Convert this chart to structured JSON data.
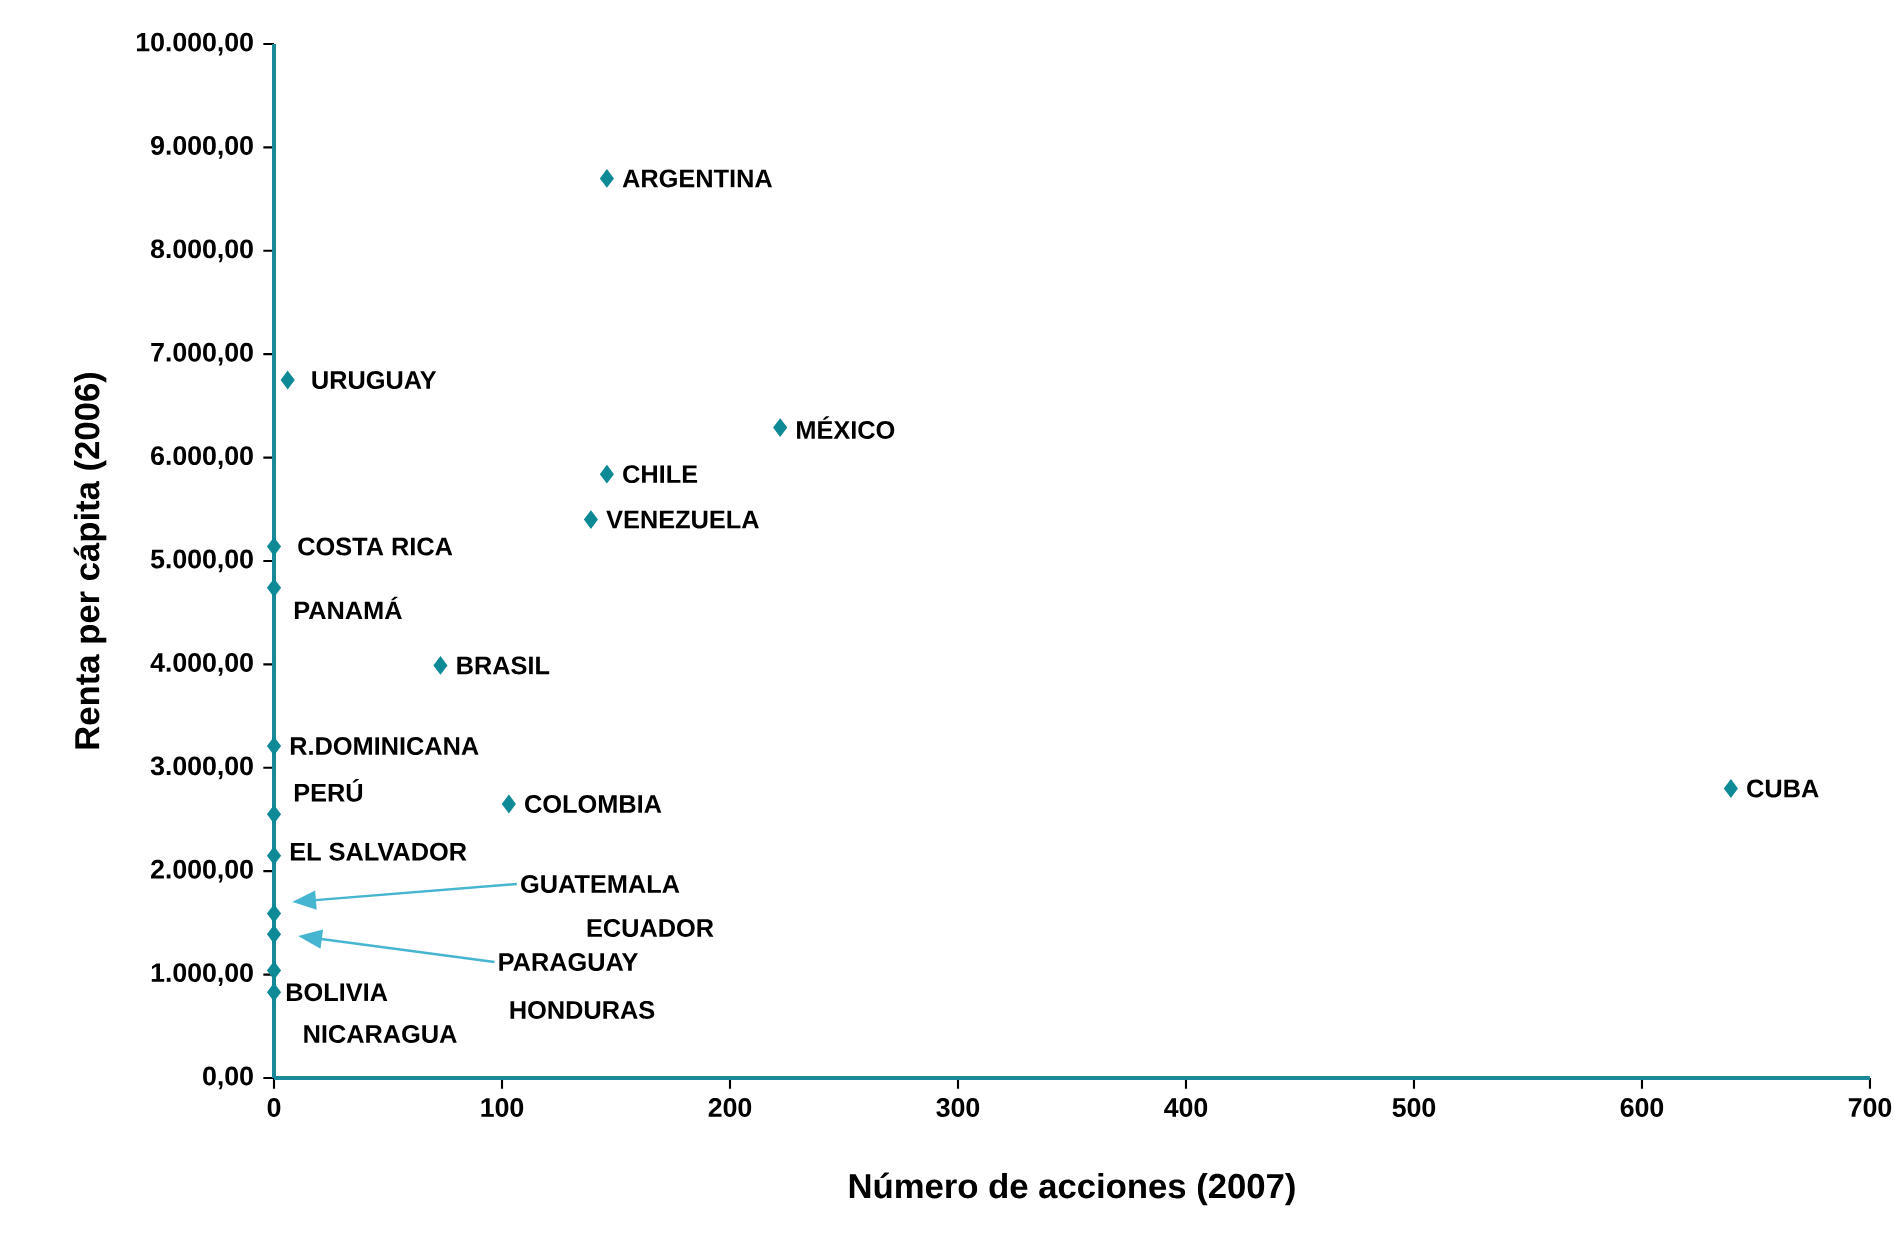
{
  "chart_data": {
    "type": "scatter",
    "xlabel": "Número de acciones (2007)",
    "ylabel": "Renta per cápita (2006)",
    "x": [
      146,
      6,
      222,
      146,
      139,
      0,
      0,
      73,
      0,
      0,
      103,
      0,
      0,
      0,
      0,
      0,
      639
    ],
    "values": [
      8700,
      6750,
      6290,
      5840,
      5400,
      5140,
      4740,
      3990,
      3210,
      2550,
      2650,
      2150,
      1590,
      1390,
      1040,
      830,
      2800
    ],
    "color": "#0e8a96",
    "marker": "diamond",
    "grid": false,
    "xlim": [
      0,
      700
    ],
    "xticks": [
      0,
      100,
      200,
      300,
      400,
      500,
      600,
      700
    ],
    "ylim": [
      0,
      10000
    ],
    "yticks": [
      {
        "value": 0,
        "label": "0,00"
      },
      {
        "value": 1000,
        "label": "1.000,00"
      },
      {
        "value": 2000,
        "label": "2.000,00"
      },
      {
        "value": 3000,
        "label": "3.000,00"
      },
      {
        "value": 4000,
        "label": "4.000,00"
      },
      {
        "value": 5000,
        "label": "5.000,00"
      },
      {
        "value": 6000,
        "label": "6.000,00"
      },
      {
        "value": 7000,
        "label": "7.000,00"
      },
      {
        "value": 8000,
        "label": "8.000,00"
      },
      {
        "value": 9000,
        "label": "9.000,00"
      },
      {
        "value": 10000,
        "label": "10.000,00"
      }
    ],
    "annotations": [
      {
        "text": "ARGENTINA",
        "x": 146,
        "y": 8700
      },
      {
        "text": "URUGUAY",
        "x": 6,
        "y": 6750
      },
      {
        "text": "MÉXICO",
        "x": 222,
        "y": 6290
      },
      {
        "text": "CHILE",
        "x": 146,
        "y": 5840
      },
      {
        "text": "VENEZUELA",
        "x": 139,
        "y": 5400
      },
      {
        "text": "COSTA RICA",
        "x": 0,
        "y": 5140
      },
      {
        "text": "PANAMÁ",
        "x": 0,
        "y": 4740
      },
      {
        "text": "BRASIL",
        "x": 73,
        "y": 3990
      },
      {
        "text": "R.DOMINICANA",
        "x": 0,
        "y": 3210
      },
      {
        "text": "PERÚ",
        "x": 0,
        "y": 2550
      },
      {
        "text": "COLOMBIA",
        "x": 103,
        "y": 2650
      },
      {
        "text": "EL SALVADOR",
        "x": 0,
        "y": 2150
      },
      {
        "text": "BOLIVIA",
        "x": 0,
        "y": 830
      },
      {
        "text": "CUBA",
        "x": 639,
        "y": 2800
      },
      "ECUADOR",
      "NICARAGUA",
      "GUATEMALA",
      "PARAGUAY",
      "HONDURAS"
    ]
  }
}
